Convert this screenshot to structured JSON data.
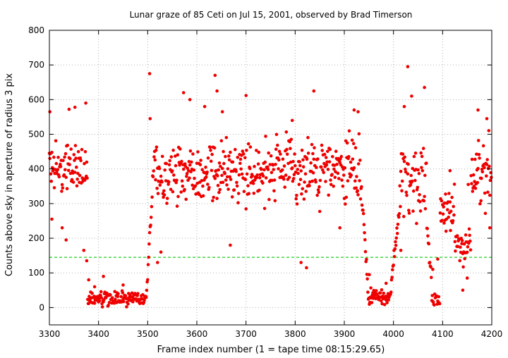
{
  "chart_data": {
    "type": "scatter",
    "title": "Lunar graze of 85 Ceti on Jul 15, 2001, observed by Brad Timerson",
    "xlabel": "Frame index number (1 = tape time 08:15:29.65)",
    "ylabel": "Counts above sky in aperture of radius 3 pix",
    "xlim": [
      3300,
      4200
    ],
    "ylim": [
      -50,
      800
    ],
    "x_ticks": [
      3300,
      3400,
      3500,
      3600,
      3700,
      3800,
      3900,
      4000,
      4100,
      4200
    ],
    "y_ticks": [
      0,
      100,
      200,
      300,
      400,
      500,
      600,
      700,
      800
    ],
    "grid": true,
    "threshold": {
      "y": 145,
      "color": "#22cc22"
    },
    "marker_color": "#ee0000",
    "segments": [
      {
        "x0": 3300,
        "x1": 3378,
        "mode": "high",
        "center": 400,
        "spread": 75,
        "outliers": [
          [
            3301,
            565
          ],
          [
            3305,
            255
          ],
          [
            3326,
            230
          ],
          [
            3334,
            195
          ],
          [
            3340,
            572
          ],
          [
            3352,
            578
          ],
          [
            3370,
            165
          ],
          [
            3374,
            590
          ],
          [
            3376,
            135
          ]
        ]
      },
      {
        "x0": 3378,
        "x1": 3497,
        "mode": "low",
        "center": 25,
        "spread": 30,
        "outliers": [
          [
            3380,
            80
          ],
          [
            3392,
            60
          ],
          [
            3410,
            90
          ],
          [
            3450,
            65
          ]
        ]
      },
      {
        "x0": 3497,
        "x1": 3515,
        "mode": "rise",
        "from": 30,
        "to": 470,
        "outliers": [
          [
            3504,
            675
          ],
          [
            3505,
            545
          ]
        ]
      },
      {
        "x0": 3515,
        "x1": 3935,
        "mode": "high",
        "center": 395,
        "spread": 95,
        "outliers": [
          [
            3520,
            130
          ],
          [
            3527,
            160
          ],
          [
            3573,
            620
          ],
          [
            3586,
            600
          ],
          [
            3616,
            580
          ],
          [
            3637,
            670
          ],
          [
            3641,
            625
          ],
          [
            3652,
            565
          ],
          [
            3668,
            180
          ],
          [
            3700,
            612
          ],
          [
            3794,
            540
          ],
          [
            3812,
            130
          ],
          [
            3823,
            115
          ],
          [
            3838,
            625
          ],
          [
            3891,
            230
          ],
          [
            3920,
            570
          ],
          [
            3928,
            565
          ]
        ]
      },
      {
        "x0": 3935,
        "x1": 3948,
        "mode": "fall",
        "from": 340,
        "to": 60
      },
      {
        "x0": 3948,
        "x1": 3995,
        "mode": "low",
        "center": 30,
        "spread": 30,
        "outliers": [
          [
            3951,
            95
          ],
          [
            3985,
            70
          ]
        ]
      },
      {
        "x0": 3995,
        "x1": 4012,
        "mode": "rise",
        "from": 60,
        "to": 290
      },
      {
        "x0": 4012,
        "x1": 4068,
        "mode": "high",
        "center": 370,
        "spread": 110,
        "outliers": [
          [
            4029,
            695
          ],
          [
            4037,
            610
          ],
          [
            4063,
            635
          ],
          [
            4022,
            580
          ],
          [
            4015,
            165
          ]
        ]
      },
      {
        "x0": 4068,
        "x1": 4078,
        "mode": "fall",
        "from": 230,
        "to": 80
      },
      {
        "x0": 4078,
        "x1": 4095,
        "mode": "low",
        "center": 25,
        "spread": 30,
        "outliers": [
          [
            4080,
            110
          ],
          [
            4090,
            140
          ]
        ]
      },
      {
        "x0": 4095,
        "x1": 4125,
        "mode": "high",
        "center": 290,
        "spread": 90,
        "outliers": [
          [
            4115,
            395
          ]
        ]
      },
      {
        "x0": 4125,
        "x1": 4158,
        "mode": "low",
        "center": 175,
        "spread": 75,
        "outliers": [
          [
            4141,
            50
          ],
          [
            4150,
            85
          ],
          [
            4152,
            355
          ]
        ]
      },
      {
        "x0": 4158,
        "x1": 4200,
        "mode": "high",
        "center": 390,
        "spread": 120,
        "outliers": [
          [
            4172,
            570
          ],
          [
            4190,
            545
          ],
          [
            4196,
            230
          ]
        ]
      }
    ]
  }
}
